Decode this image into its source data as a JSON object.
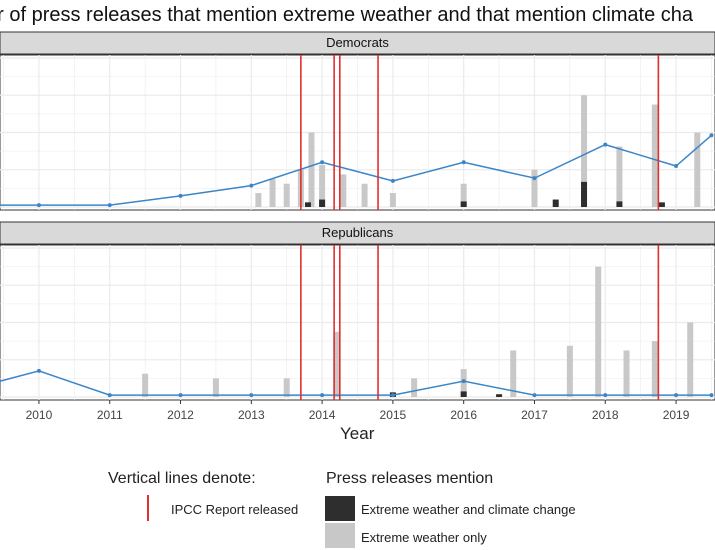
{
  "title": "er of press releases that mention extreme weather and that mention climate cha",
  "chart_data": {
    "type": "bar",
    "xlabel": "Year",
    "ylabel": "",
    "x_ticks": [
      "2010",
      "2011",
      "2012",
      "2013",
      "2014",
      "2015",
      "2016",
      "2017",
      "2018",
      "2019"
    ],
    "grid": true,
    "panels": [
      {
        "name": "Democrats",
        "line_points": [
          [
            2009.0,
            0.2
          ],
          [
            2010.0,
            0.2
          ],
          [
            2011.0,
            0.2
          ],
          [
            2012.0,
            1.2
          ],
          [
            2013.0,
            2.3
          ],
          [
            2014.0,
            4.8
          ],
          [
            2015.0,
            2.8
          ],
          [
            2016.0,
            4.8
          ],
          [
            2017.0,
            3.1
          ],
          [
            2018.0,
            6.7
          ],
          [
            2019.0,
            4.4
          ],
          [
            2019.5,
            7.7
          ]
        ],
        "bars_extreme_only": [
          [
            2013.1,
            1.5
          ],
          [
            2013.3,
            3.0
          ],
          [
            2013.5,
            2.5
          ],
          [
            2013.7,
            4.0
          ],
          [
            2013.85,
            8.0
          ],
          [
            2014.0,
            4.5
          ],
          [
            2014.3,
            3.5
          ],
          [
            2014.6,
            2.5
          ],
          [
            2015.0,
            1.5
          ],
          [
            2016.0,
            2.5
          ],
          [
            2017.0,
            4.0
          ],
          [
            2017.7,
            12.0
          ],
          [
            2018.2,
            6.5
          ],
          [
            2018.7,
            11.0
          ],
          [
            2019.3,
            8.0
          ],
          [
            2019.6,
            11.0
          ]
        ],
        "bars_both": [
          [
            2013.8,
            0.5
          ],
          [
            2014.0,
            0.8
          ],
          [
            2016.0,
            0.6
          ],
          [
            2017.3,
            0.8
          ],
          [
            2017.7,
            2.7
          ],
          [
            2018.2,
            0.6
          ],
          [
            2018.8,
            0.5
          ],
          [
            2019.6,
            1.6
          ]
        ]
      },
      {
        "name": "Republicans",
        "line_points": [
          [
            2009.0,
            0.8
          ],
          [
            2010.0,
            2.8
          ],
          [
            2011.0,
            0.2
          ],
          [
            2012.0,
            0.2
          ],
          [
            2013.0,
            0.2
          ],
          [
            2014.0,
            0.2
          ],
          [
            2015.0,
            0.2
          ],
          [
            2016.0,
            1.7
          ],
          [
            2017.0,
            0.2
          ],
          [
            2018.0,
            0.2
          ],
          [
            2019.0,
            0.2
          ],
          [
            2019.5,
            0.2
          ]
        ],
        "bars_extreme_only": [
          [
            2011.5,
            2.5
          ],
          [
            2012.5,
            2.0
          ],
          [
            2013.5,
            2.0
          ],
          [
            2014.2,
            7.0
          ],
          [
            2015.3,
            2.0
          ],
          [
            2016.0,
            3.0
          ],
          [
            2016.7,
            5.0
          ],
          [
            2017.5,
            5.5
          ],
          [
            2017.9,
            14.0
          ],
          [
            2018.3,
            5.0
          ],
          [
            2018.7,
            6.0
          ],
          [
            2019.2,
            8.0
          ],
          [
            2019.6,
            7.5
          ]
        ],
        "bars_both": [
          [
            2015.0,
            0.5
          ],
          [
            2016.0,
            0.6
          ],
          [
            2016.5,
            0.3
          ]
        ]
      }
    ],
    "ipcc_lines": [
      2013.7,
      2014.17,
      2014.25,
      2014.79,
      2018.75
    ],
    "legend": {
      "lines_title": "Vertical lines denote:",
      "lines_item": "IPCC Report released",
      "fill_title": "Press releases mention",
      "fill_items": [
        "Extreme weather and climate change",
        "Extreme weather only"
      ]
    },
    "colors": {
      "panel_bg": "#ffffff",
      "grid": "#ebebeb",
      "strip_bg": "#d9d9d9",
      "bar_light": "#c8c8c8",
      "bar_dark": "#2e2e2e",
      "line": "#3a86c8",
      "ipcc": "#e0302d"
    }
  }
}
